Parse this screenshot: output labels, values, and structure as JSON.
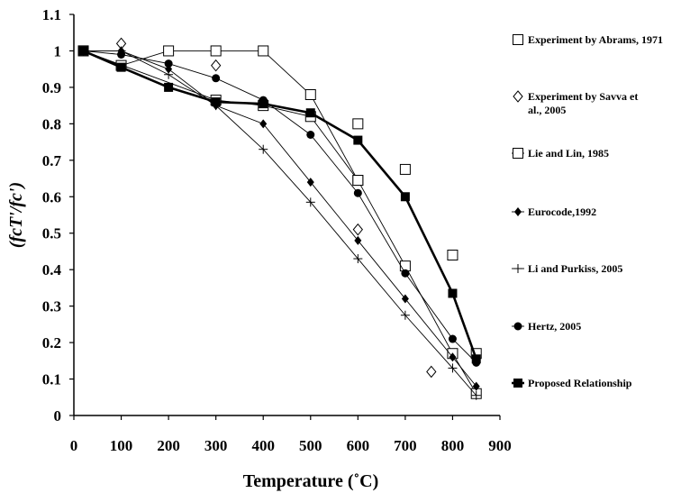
{
  "chart_data": {
    "type": "line",
    "xlabel": "Temperature (˚C)",
    "ylabel": "(fcT'/fc')",
    "xlim": [
      0,
      900
    ],
    "ylim": [
      0,
      1.1
    ],
    "x_ticks": [
      "0",
      "100",
      "200",
      "300",
      "400",
      "500",
      "600",
      "700",
      "800",
      "900"
    ],
    "y_ticks": [
      "0",
      "0.1",
      "0.2",
      "0.3",
      "0.4",
      "0.5",
      "0.6",
      "0.7",
      "0.8",
      "0.9",
      "1",
      "1.1"
    ],
    "grid": false,
    "legend_position": "right",
    "series": [
      {
        "name": "Experiment by Abrams, 1971",
        "marker": "open-square",
        "line": false,
        "x": [
          20,
          600,
          700,
          800,
          850
        ],
        "y": [
          1.0,
          0.8,
          0.675,
          0.44,
          0.17
        ]
      },
      {
        "name": "Experiment by Savva et al., 2005",
        "marker": "open-diamond",
        "line": false,
        "x": [
          100,
          300,
          600,
          755
        ],
        "y": [
          1.02,
          0.96,
          0.51,
          0.12
        ]
      },
      {
        "name": "Lie and Lin, 1985",
        "marker": "open-square",
        "line": true,
        "line_width": "thin",
        "x": [
          20,
          100,
          200,
          300,
          400,
          500,
          600,
          700,
          800,
          850
        ],
        "y": [
          1.0,
          0.96,
          1.0,
          1.0,
          1.0,
          0.88,
          0.645,
          0.41,
          0.17,
          0.06
        ],
        "x2": [
          20,
          300,
          400,
          500,
          600
        ],
        "y2": [
          1.0,
          0.865,
          0.85,
          0.82,
          0.645
        ]
      },
      {
        "name": "Eurocode,1992",
        "marker": "filled-diamond",
        "line": true,
        "line_width": "thin",
        "x": [
          20,
          100,
          200,
          300,
          400,
          500,
          600,
          700,
          800,
          850
        ],
        "y": [
          1.0,
          1.0,
          0.95,
          0.85,
          0.8,
          0.64,
          0.48,
          0.32,
          0.16,
          0.08
        ]
      },
      {
        "name": "Li and Purkiss, 2005",
        "marker": "plus",
        "line": true,
        "line_width": "thin",
        "x": [
          20,
          100,
          200,
          300,
          400,
          500,
          600,
          700,
          800,
          850
        ],
        "y": [
          1.0,
          1.0,
          0.935,
          0.85,
          0.73,
          0.585,
          0.43,
          0.275,
          0.13,
          0.055
        ]
      },
      {
        "name": "Hertz, 2005",
        "marker": "filled-circle",
        "line": true,
        "line_width": "thin",
        "x": [
          20,
          100,
          200,
          300,
          400,
          500,
          600,
          700,
          800,
          850
        ],
        "y": [
          1.0,
          0.99,
          0.965,
          0.925,
          0.865,
          0.77,
          0.61,
          0.39,
          0.21,
          0.145
        ]
      },
      {
        "name": "Proposed Relationship",
        "marker": "filled-square",
        "line": true,
        "line_width": "thick",
        "x": [
          20,
          100,
          200,
          300,
          400,
          500,
          600,
          700,
          800,
          850
        ],
        "y": [
          1.0,
          0.955,
          0.9,
          0.86,
          0.855,
          0.83,
          0.755,
          0.6,
          0.335,
          0.155
        ]
      }
    ]
  }
}
